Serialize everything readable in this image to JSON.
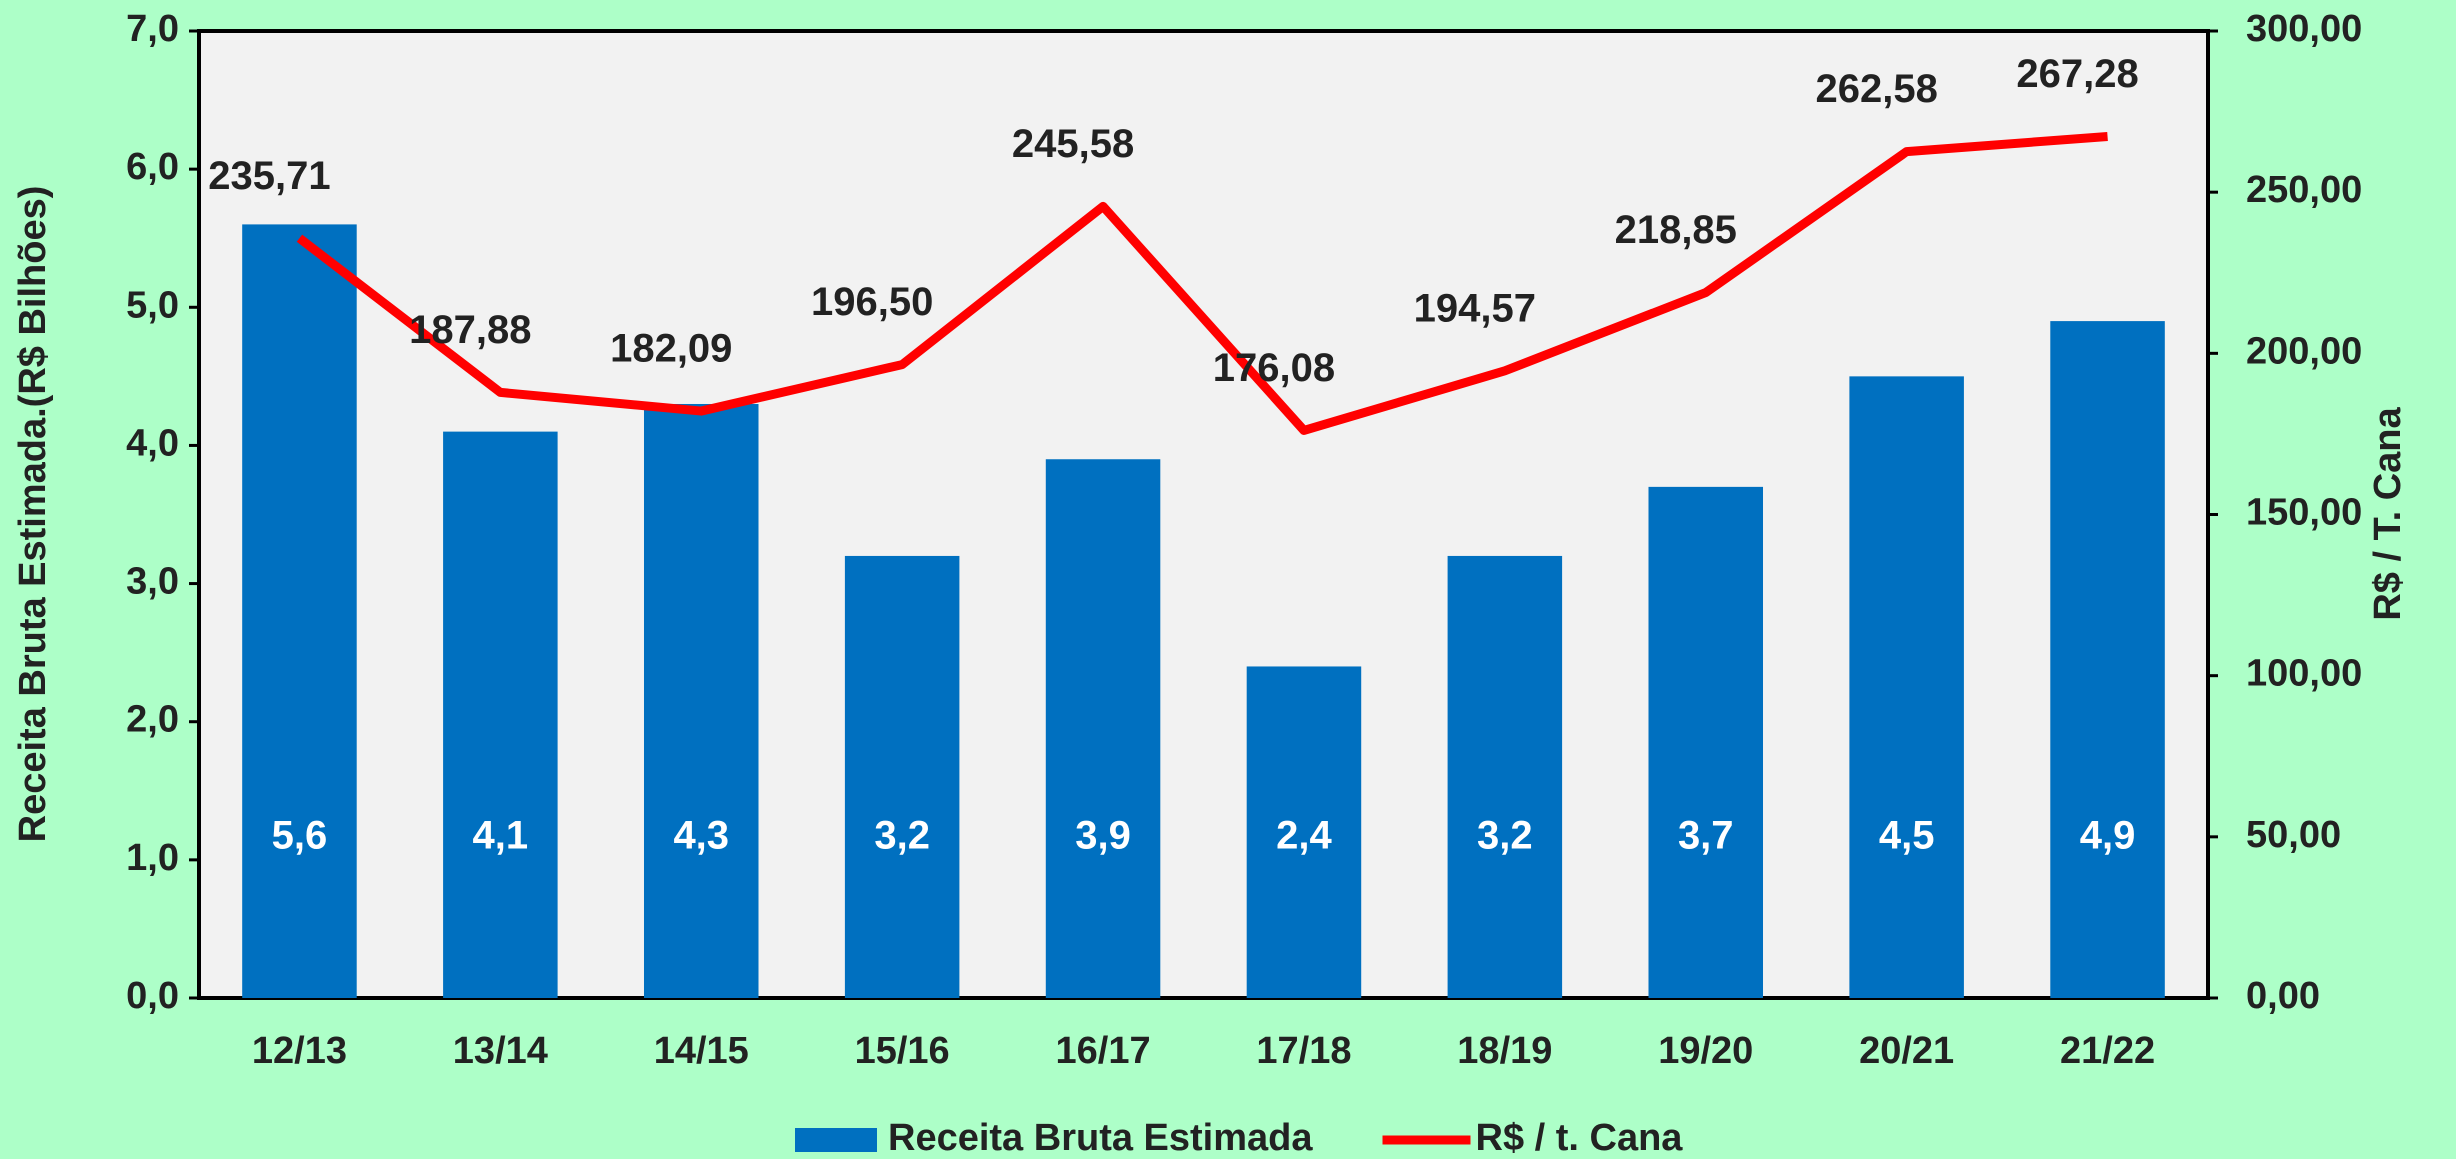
{
  "chart_data": {
    "type": "bar",
    "categories": [
      "12/13",
      "13/14",
      "14/15",
      "15/16",
      "16/17",
      "17/18",
      "18/19",
      "19/20",
      "20/21",
      "21/22"
    ],
    "y_label": "Receita Bruta Estimada.(R$ Bilhões)",
    "y2_label": "R$ / T. Cana",
    "series": [
      {
        "name": "Receita Bruta Estimada",
        "color": "#0070c0",
        "type": "bar",
        "values": [
          5.6,
          4.1,
          4.3,
          3.2,
          3.9,
          2.4,
          3.2,
          3.7,
          4.5,
          4.9
        ],
        "value_labels": [
          "5,6",
          "4,1",
          "4,3",
          "3,2",
          "3,9",
          "2,4",
          "3,2",
          "3,7",
          "4,5",
          "4,9"
        ]
      },
      {
        "name": "R$ / t. Cana",
        "color": "#ff0000",
        "type": "line",
        "axis": "y2",
        "values": [
          235.71,
          187.88,
          182.09,
          196.5,
          245.58,
          176.08,
          194.57,
          218.85,
          262.58,
          267.28
        ],
        "value_labels": [
          "235,71",
          "187,88",
          "182,09",
          "196,50",
          "245,58",
          "176,08",
          "194,57",
          "218,85",
          "262,58",
          "267,28"
        ]
      }
    ],
    "ylim": [
      0,
      7
    ],
    "yticks": [
      {
        "value": 0,
        "label": "0,0"
      },
      {
        "value": 1,
        "label": "1,0"
      },
      {
        "value": 2,
        "label": "2,0"
      },
      {
        "value": 3,
        "label": "3,0"
      },
      {
        "value": 4,
        "label": "4,0"
      },
      {
        "value": 5,
        "label": "5,0"
      },
      {
        "value": 6,
        "label": "6,0"
      },
      {
        "value": 7,
        "label": "7,0"
      }
    ],
    "y2lim": [
      0,
      300
    ],
    "y2ticks": [
      {
        "value": 0,
        "label": "0,00"
      },
      {
        "value": 50,
        "label": "50,00"
      },
      {
        "value": 100,
        "label": "100,00"
      },
      {
        "value": 150,
        "label": "150,00"
      },
      {
        "value": 200,
        "label": "200,00"
      },
      {
        "value": 250,
        "label": "250,00"
      },
      {
        "value": 300,
        "label": "300,00"
      }
    ],
    "legend": "bottom"
  }
}
